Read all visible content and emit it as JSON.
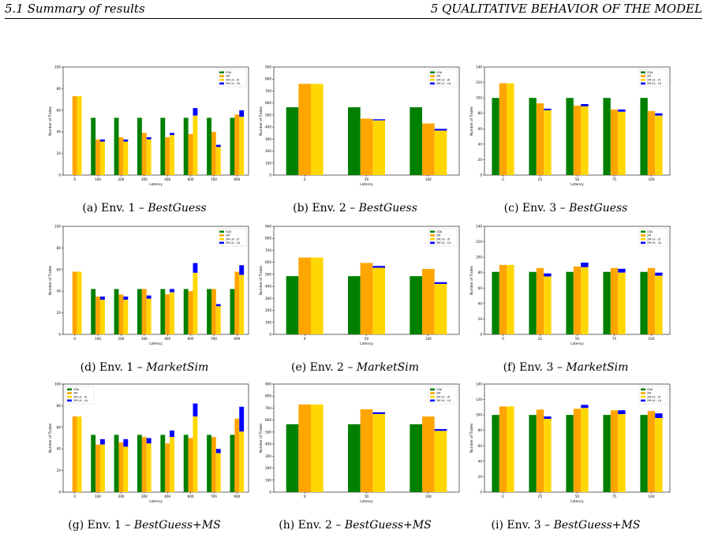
{
  "header": {
    "left": "5.1  Summary of results",
    "right": "5  QUALITATIVE BEHAVIOR OF THE MODEL"
  },
  "colors": {
    "CDA": "#008000",
    "2M": "#ffa500",
    "2M LA - ZI": "#ffd700",
    "2M LA - LA": "#0000ff"
  },
  "panels": [
    {
      "caption_prefix": "(a) Env. 1 – ",
      "caption_italic": "BestGuess"
    },
    {
      "caption_prefix": "(b) Env. 2 – ",
      "caption_italic": "BestGuess"
    },
    {
      "caption_prefix": "(c) Env. 3 – ",
      "caption_italic": "BestGuess"
    },
    {
      "caption_prefix": "(d) Env. 1 – ",
      "caption_italic": "MarketSim"
    },
    {
      "caption_prefix": "(e) Env. 2 – ",
      "caption_italic": "MarketSim"
    },
    {
      "caption_prefix": "(f) Env. 3 – ",
      "caption_italic": "MarketSim"
    },
    {
      "caption_prefix": "(g) Env. 1 – ",
      "caption_italic": "BestGuess+MS"
    },
    {
      "caption_prefix": "(h) Env. 2 – ",
      "caption_italic": "BestGuess+MS"
    },
    {
      "caption_prefix": "(i) Env. 3 – ",
      "caption_italic": "BestGuess+MS"
    }
  ],
  "chart_data": [
    {
      "type": "bar",
      "xlabel": "Latency",
      "ylabel": "Number of Trades",
      "ylim": [
        0,
        100
      ],
      "yticks": [
        0,
        20,
        40,
        60,
        80,
        100
      ],
      "legend": "top-right",
      "categories": [
        "0",
        "100",
        "200",
        "300",
        "400",
        "600",
        "700",
        "900"
      ],
      "series": [
        {
          "name": "CDA",
          "values": [
            null,
            53,
            53,
            53,
            53,
            53,
            53,
            53
          ]
        },
        {
          "name": "2M",
          "values": [
            73,
            33,
            35,
            39,
            35,
            38,
            40,
            56
          ]
        },
        {
          "name": "2M LA - ZI",
          "values": [
            73,
            31,
            31,
            33,
            37,
            55,
            26,
            54
          ]
        },
        {
          "name": "2M LA - LA",
          "values": [
            null,
            33,
            33,
            35,
            39,
            62,
            28,
            60
          ]
        }
      ]
    },
    {
      "type": "bar",
      "xlabel": "Latency",
      "ylabel": "Number of Trades",
      "ylim": [
        0,
        900
      ],
      "yticks": [
        0,
        100,
        200,
        300,
        400,
        500,
        600,
        700,
        800,
        900
      ],
      "legend": "top-right",
      "categories": [
        "0",
        "50",
        "100"
      ],
      "series": [
        {
          "name": "CDA",
          "values": [
            565,
            565,
            565
          ]
        },
        {
          "name": "2M",
          "values": [
            760,
            470,
            430
          ]
        },
        {
          "name": "2M LA - ZI",
          "values": [
            760,
            455,
            370
          ]
        },
        {
          "name": "2M LA - LA",
          "values": [
            null,
            465,
            385
          ]
        }
      ]
    },
    {
      "type": "bar",
      "xlabel": "Latency",
      "ylabel": "Number of Trades",
      "ylim": [
        0,
        140
      ],
      "yticks": [
        0,
        20,
        40,
        60,
        80,
        100,
        120,
        140
      ],
      "legend": "top-right",
      "categories": [
        "0",
        "25",
        "50",
        "75",
        "100"
      ],
      "series": [
        {
          "name": "CDA",
          "values": [
            100,
            100,
            100,
            100,
            100
          ]
        },
        {
          "name": "2M",
          "values": [
            119,
            93,
            90,
            85,
            83
          ]
        },
        {
          "name": "2M LA - ZI",
          "values": [
            119,
            84,
            89,
            82,
            77
          ]
        },
        {
          "name": "2M LA - LA",
          "values": [
            null,
            86,
            92,
            85,
            80
          ]
        }
      ]
    },
    {
      "type": "bar",
      "xlabel": "Latency",
      "ylabel": "Number of Trades",
      "ylim": [
        0,
        100
      ],
      "yticks": [
        0,
        20,
        40,
        60,
        80,
        100
      ],
      "legend": "top-right",
      "categories": [
        "0",
        "100",
        "200",
        "300",
        "400",
        "600",
        "700",
        "900"
      ],
      "series": [
        {
          "name": "CDA",
          "values": [
            null,
            42,
            42,
            42,
            42,
            42,
            42,
            42
          ]
        },
        {
          "name": "2M",
          "values": [
            58,
            35,
            37,
            42,
            37,
            40,
            42,
            58
          ]
        },
        {
          "name": "2M LA - ZI",
          "values": [
            58,
            32,
            32,
            33,
            39,
            57,
            26,
            55
          ]
        },
        {
          "name": "2M LA - LA",
          "values": [
            null,
            35,
            35,
            36,
            42,
            66,
            28,
            64
          ]
        }
      ]
    },
    {
      "type": "bar",
      "xlabel": "Latency",
      "ylabel": "Number of Trades",
      "ylim": [
        0,
        900
      ],
      "yticks": [
        0,
        100,
        200,
        300,
        400,
        500,
        600,
        700,
        800,
        900
      ],
      "legend": "top-right",
      "categories": [
        "0",
        "50",
        "100"
      ],
      "series": [
        {
          "name": "CDA",
          "values": [
            485,
            485,
            485
          ]
        },
        {
          "name": "2M",
          "values": [
            640,
            595,
            545
          ]
        },
        {
          "name": "2M LA - ZI",
          "values": [
            640,
            555,
            420
          ]
        },
        {
          "name": "2M LA - LA",
          "values": [
            null,
            570,
            435
          ]
        }
      ]
    },
    {
      "type": "bar",
      "xlabel": "Latency",
      "ylabel": "Number of Trades",
      "ylim": [
        0,
        140
      ],
      "yticks": [
        0,
        20,
        40,
        60,
        80,
        100,
        120,
        140
      ],
      "legend": "top-right",
      "categories": [
        "0",
        "25",
        "50",
        "75",
        "100"
      ],
      "series": [
        {
          "name": "CDA",
          "values": [
            81,
            81,
            81,
            81,
            81
          ]
        },
        {
          "name": "2M",
          "values": [
            90,
            86,
            88,
            86,
            86
          ]
        },
        {
          "name": "2M LA - ZI",
          "values": [
            90,
            75,
            87,
            80,
            76
          ]
        },
        {
          "name": "2M LA - LA",
          "values": [
            null,
            79,
            93,
            85,
            80
          ]
        }
      ]
    },
    {
      "type": "bar",
      "xlabel": "Latency",
      "ylabel": "Number of Trades",
      "ylim": [
        0,
        100
      ],
      "yticks": [
        0,
        20,
        40,
        60,
        80,
        100
      ],
      "legend": "top-left",
      "categories": [
        "0",
        "100",
        "200",
        "300",
        "400",
        "600",
        "700",
        "900"
      ],
      "series": [
        {
          "name": "CDA",
          "values": [
            null,
            53,
            53,
            53,
            53,
            53,
            53,
            53
          ]
        },
        {
          "name": "2M",
          "values": [
            70,
            44,
            46,
            51,
            45,
            50,
            51,
            68
          ]
        },
        {
          "name": "2M LA - ZI",
          "values": [
            70,
            44,
            42,
            45,
            51,
            70,
            36,
            56
          ]
        },
        {
          "name": "2M LA - LA",
          "values": [
            null,
            49,
            49,
            50,
            57,
            82,
            40,
            79
          ]
        }
      ]
    },
    {
      "type": "bar",
      "xlabel": "Latency",
      "ylabel": "Number of Trades",
      "ylim": [
        0,
        900
      ],
      "yticks": [
        0,
        100,
        200,
        300,
        400,
        500,
        600,
        700,
        800,
        900
      ],
      "legend": "top-right",
      "categories": [
        "0",
        "50",
        "100"
      ],
      "series": [
        {
          "name": "CDA",
          "values": [
            565,
            565,
            565
          ]
        },
        {
          "name": "2M",
          "values": [
            730,
            690,
            630
          ]
        },
        {
          "name": "2M LA - ZI",
          "values": [
            730,
            650,
            510
          ]
        },
        {
          "name": "2M LA - LA",
          "values": [
            null,
            665,
            525
          ]
        }
      ]
    },
    {
      "type": "bar",
      "xlabel": "Latency",
      "ylabel": "Number of Trades",
      "ylim": [
        0,
        140
      ],
      "yticks": [
        0,
        20,
        40,
        60,
        80,
        100,
        120,
        140
      ],
      "legend": "top-right",
      "categories": [
        "0",
        "25",
        "50",
        "75",
        "100"
      ],
      "series": [
        {
          "name": "CDA",
          "values": [
            100,
            100,
            100,
            100,
            100
          ]
        },
        {
          "name": "2M",
          "values": [
            111,
            107,
            108,
            106,
            105
          ]
        },
        {
          "name": "2M LA - ZI",
          "values": [
            111,
            95,
            109,
            101,
            96
          ]
        },
        {
          "name": "2M LA - LA",
          "values": [
            null,
            98,
            113,
            106,
            102
          ]
        }
      ]
    }
  ]
}
